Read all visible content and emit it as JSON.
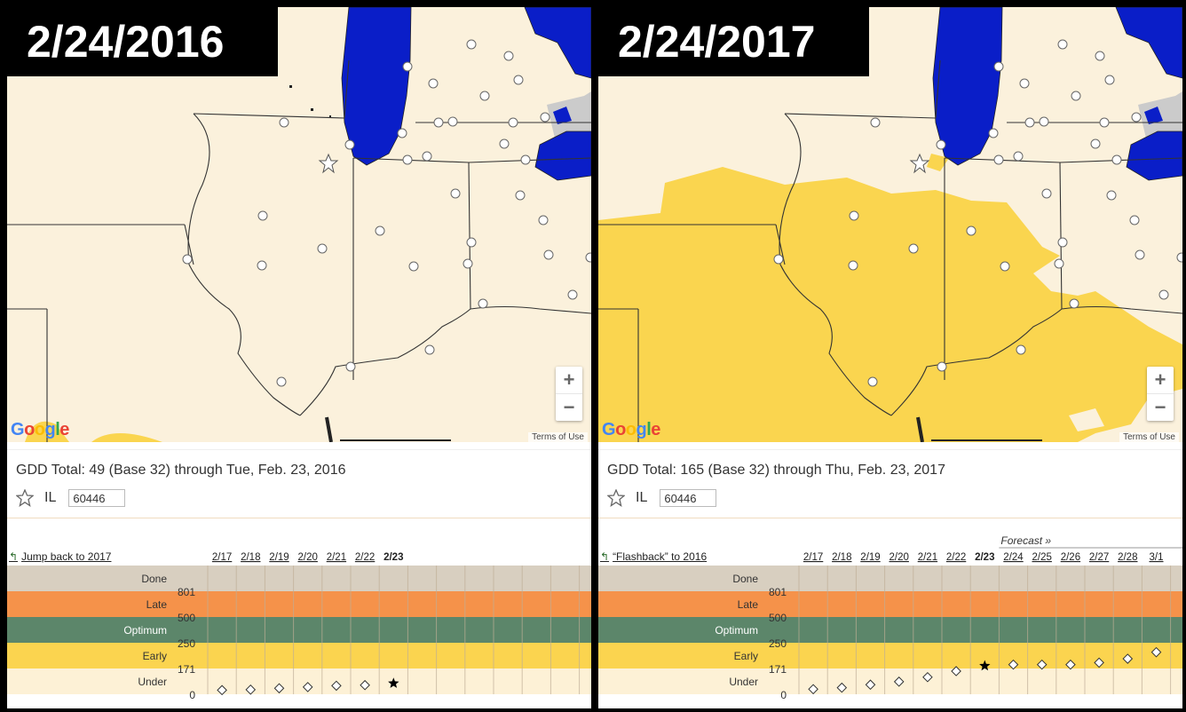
{
  "panels": [
    {
      "banner": "2/24/2016",
      "gdd_text": "GDD Total: 49 (Base 32) through Tue, Feb. 23, 2016",
      "state": "IL",
      "zip": "60446",
      "jump_label": "Jump back to 2017",
      "forecast_label": "",
      "google": "Google",
      "terms": "Terms of Use",
      "zoom_in": "+",
      "zoom_out": "−",
      "chart_data": {
        "type": "scatter",
        "categories": [
          "2/17",
          "2/18",
          "2/19",
          "2/20",
          "2/21",
          "2/22",
          "2/23"
        ],
        "current": "2/23",
        "bands": [
          "Done",
          "Late",
          "Optimum",
          "Early",
          "Under"
        ],
        "thresholds": [
          "801",
          "500",
          "250",
          "171",
          "0"
        ],
        "values": [
          4,
          7,
          16,
          24,
          33,
          37,
          49
        ]
      }
    },
    {
      "banner": "2/24/2017",
      "gdd_text": "GDD Total: 165 (Base 32) through Thu, Feb. 23, 2017",
      "state": "IL",
      "zip": "60446",
      "jump_label": "“Flashback” to 2016",
      "forecast_label": "Forecast »",
      "google": "Google",
      "terms": "Terms of Use",
      "zoom_in": "+",
      "zoom_out": "−",
      "chart_data": {
        "type": "scatter",
        "categories": [
          "2/17",
          "2/18",
          "2/19",
          "2/20",
          "2/21",
          "2/22",
          "2/23",
          "2/24",
          "2/25",
          "2/26",
          "2/27",
          "2/28",
          "3/1"
        ],
        "current": "2/23",
        "bands": [
          "Done",
          "Late",
          "Optimum",
          "Early",
          "Under"
        ],
        "thresholds": [
          "801",
          "500",
          "250",
          "171",
          "0"
        ],
        "values": [
          10,
          20,
          40,
          60,
          90,
          130,
          165,
          172,
          172,
          172,
          178,
          190,
          210
        ]
      }
    }
  ],
  "colors": {
    "done": "#d8cfc0",
    "late": "#f5924a",
    "optimum": "#5c866a",
    "early": "#fbd44f",
    "under": "#fdf1d6",
    "lake": "#0a1ec8",
    "land": "#fbf1dc",
    "gdd_fill": "#fad54f",
    "canada": "#cbcbcb"
  }
}
